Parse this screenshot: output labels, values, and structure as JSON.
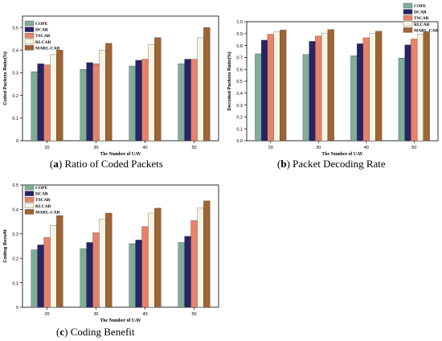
{
  "colors": [
    "#7fae98",
    "#262467",
    "#e8836a",
    "#f7f4e2",
    "#9e6432"
  ],
  "chart_data": [
    {
      "id": "a",
      "type": "bar",
      "caption_label": "a",
      "caption_text": "Ratio of Coded Packets",
      "xlabel": "The Number of UAV",
      "ylabel": "Coded Packets Ratio(%)",
      "categories": [
        "20",
        "30",
        "40",
        "50"
      ],
      "ylim": [
        0,
        0.55
      ],
      "yticks": [
        "0",
        "0.1",
        "0.2",
        "0.3",
        "0.4",
        "0.5"
      ],
      "ytick_values": [
        0,
        0.1,
        0.2,
        0.3,
        0.4,
        0.5
      ],
      "legend_position": "top-left",
      "series": [
        {
          "name": "COPE",
          "values": [
            0.305,
            0.315,
            0.33,
            0.34
          ]
        },
        {
          "name": "DCAR",
          "values": [
            0.34,
            0.345,
            0.355,
            0.36
          ]
        },
        {
          "name": "TSCAR",
          "values": [
            0.335,
            0.34,
            0.36,
            0.36
          ]
        },
        {
          "name": "RLCAR",
          "values": [
            0.38,
            0.4,
            0.425,
            0.455
          ]
        },
        {
          "name": "MARL-CAR",
          "values": [
            0.4,
            0.43,
            0.455,
            0.5
          ]
        }
      ]
    },
    {
      "id": "b",
      "type": "bar",
      "caption_label": "b",
      "caption_text": "Packet Decoding Rate",
      "xlabel": "The Number of UAV",
      "ylabel": "Decoded Packets Ratio(%)",
      "categories": [
        "20",
        "30",
        "40",
        "50"
      ],
      "ylim": [
        0,
        1.0
      ],
      "yticks": [
        "0.0",
        "0.1",
        "0.2",
        "0.3",
        "0.4",
        "0.5",
        "0.6",
        "0.7",
        "0.8",
        "0.9",
        "1.0"
      ],
      "ytick_values": [
        0,
        0.1,
        0.2,
        0.3,
        0.4,
        0.5,
        0.6,
        0.7,
        0.8,
        0.9,
        1.0
      ],
      "legend_position": "top-right",
      "series": [
        {
          "name": "COPE",
          "values": [
            0.73,
            0.725,
            0.715,
            0.695
          ]
        },
        {
          "name": "DCAR",
          "values": [
            0.845,
            0.835,
            0.815,
            0.805
          ]
        },
        {
          "name": "TSCAR",
          "values": [
            0.895,
            0.88,
            0.865,
            0.855
          ]
        },
        {
          "name": "RLCAR",
          "values": [
            0.915,
            0.905,
            0.9,
            0.895
          ]
        },
        {
          "name": "MARL-CAR",
          "values": [
            0.93,
            0.935,
            0.92,
            0.915
          ]
        }
      ]
    },
    {
      "id": "c",
      "type": "bar",
      "caption_label": "c",
      "caption_text": "Coding Benefit",
      "xlabel": "The Number of UAV",
      "ylabel": "Coding Benefit",
      "categories": [
        "20",
        "30",
        "40",
        "50"
      ],
      "ylim": [
        0,
        0.5
      ],
      "yticks": [
        "0",
        "0.1",
        "0.2",
        "0.3",
        "0.4",
        "0.5"
      ],
      "ytick_values": [
        0,
        0.1,
        0.2,
        0.3,
        0.4,
        0.5
      ],
      "legend_position": "top-left",
      "series": [
        {
          "name": "COPE",
          "values": [
            0.235,
            0.24,
            0.26,
            0.265
          ]
        },
        {
          "name": "DCAR",
          "values": [
            0.255,
            0.265,
            0.275,
            0.29
          ]
        },
        {
          "name": "TSCAR",
          "values": [
            0.285,
            0.305,
            0.33,
            0.355
          ]
        },
        {
          "name": "RLCAR",
          "values": [
            0.335,
            0.36,
            0.385,
            0.405
          ]
        },
        {
          "name": "MARL-CAR",
          "values": [
            0.375,
            0.385,
            0.405,
            0.435
          ]
        }
      ]
    }
  ]
}
